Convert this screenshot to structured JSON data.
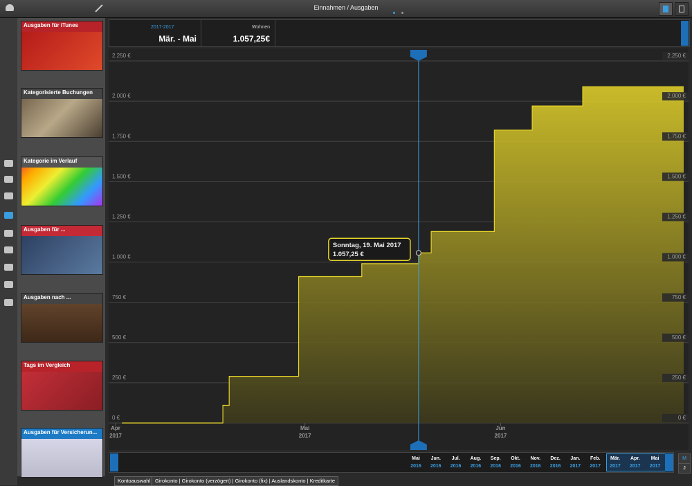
{
  "header": {
    "title": "Einnahmen / Ausgaben"
  },
  "cards": [
    "Ausgaben für iTunes",
    "Kategorisierte Buchungen",
    "Kategorie im Verlauf",
    "Ausgaben für ...",
    "Ausgaben nach ...",
    "Tags im Vergleich",
    "Ausgaben für Versicherun..."
  ],
  "info": {
    "period_caption": "2017-2017",
    "period": "Mär. - Mai",
    "category_caption": "Wohnen",
    "amount": "1.057,25€"
  },
  "chart_data": {
    "type": "step-area",
    "color": "#e6d52a",
    "x": [
      1,
      17,
      18,
      29,
      39,
      48,
      50,
      60,
      66,
      74
    ],
    "values": [
      0,
      110,
      290,
      910,
      990,
      1057.25,
      1190,
      1820,
      1970,
      2090
    ],
    "xlim": [
      0,
      90
    ],
    "xticks": [
      {
        "value": 0,
        "label": "Apr\n2017"
      },
      {
        "value": 30,
        "label": "Mai\n2017"
      },
      {
        "value": 61,
        "label": "Jun\n2017"
      }
    ],
    "ylim": [
      0,
      2250
    ],
    "yticks": [
      {
        "value": 0,
        "label": "0 €"
      },
      {
        "value": 250,
        "label": "250 €"
      },
      {
        "value": 500,
        "label": "500 €"
      },
      {
        "value": 750,
        "label": "750 €"
      },
      {
        "value": 1000,
        "label": "1.000 €"
      },
      {
        "value": 1250,
        "label": "1.250 €"
      },
      {
        "value": 1500,
        "label": "1.500 €"
      },
      {
        "value": 1750,
        "label": "1.750 €"
      },
      {
        "value": 2000,
        "label": "2.000 €"
      },
      {
        "value": 2250,
        "label": "2.250 €"
      }
    ],
    "grid": true,
    "tooltip": {
      "title": "Sonntag, 19. Mai 2017",
      "label": "1.057,25 €"
    }
  },
  "timeline": [
    [
      "Mai",
      "2016"
    ],
    [
      "Jun.",
      "2016"
    ],
    [
      "Jul.",
      "2016"
    ],
    [
      "Aug.",
      "2016"
    ],
    [
      "Sep.",
      "2016"
    ],
    [
      "Okt.",
      "2016"
    ],
    [
      "Nov.",
      "2016"
    ],
    [
      "Dez.",
      "2016"
    ],
    [
      "Jan.",
      "2017"
    ],
    [
      "Feb.",
      "2017"
    ],
    [
      "Mär.",
      "2017"
    ],
    [
      "Apr.",
      "2017"
    ],
    [
      "Mai",
      "2017"
    ]
  ],
  "buttons": [
    "M",
    "J"
  ],
  "tabs": [
    "Kontoauswahl",
    "Girokonto | Girokonto (verzögert) | Girokonto (fix) | Auslandskonto | Kreditkarte"
  ]
}
